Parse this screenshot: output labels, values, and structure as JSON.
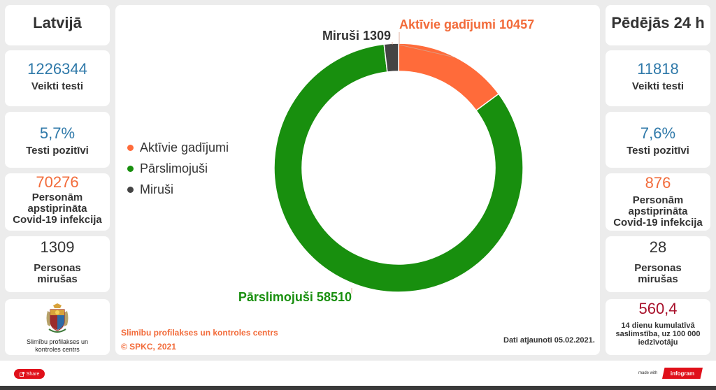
{
  "left": {
    "header": "Latvijā",
    "tests": {
      "value": "1226344",
      "label": "Veikti testi"
    },
    "positive": {
      "value": "5,7%",
      "label": "Testi pozitīvi"
    },
    "confirmed": {
      "value": "70276",
      "label_lines": [
        "Personām",
        "apstiprināta",
        "Covid-19 infekcija"
      ]
    },
    "deaths": {
      "value": "1309",
      "label_lines": [
        "Personas",
        "mirušas"
      ]
    },
    "logo_text_lines": [
      "Slimību profilakses un",
      "kontroles centrs"
    ]
  },
  "right": {
    "header": "Pēdējās 24 h",
    "tests": {
      "value": "11818",
      "label": "Veikti testi"
    },
    "positive": {
      "value": "7,6%",
      "label": "Testi pozitīvi"
    },
    "confirmed": {
      "value": "876",
      "label_lines": [
        "Personām",
        "apstiprināta",
        "Covid-19 infekcija"
      ]
    },
    "deaths": {
      "value": "28",
      "label_lines": [
        "Personas",
        "mirušas"
      ]
    },
    "incidence": {
      "value": "560,4",
      "label_lines": [
        "14 dienu kumulatīvā",
        "saslimstība, uz 100 000",
        "iedzīvotāju"
      ]
    }
  },
  "center": {
    "source": "Slimību profilakses un kontroles centrs",
    "copyright": "© SPKC, 2021",
    "updated": "Dati atjaunoti 05.02.2021."
  },
  "footer": {
    "share_label": "Share",
    "made_with": "made with",
    "brand": "infogram"
  },
  "colors": {
    "active": "#ff6b3a",
    "recovered": "#188f0e",
    "deaths": "#444444",
    "blue_text": "#2f79a9",
    "orange_text": "#f26b3a",
    "red_text": "#a8102a"
  },
  "chart_data": {
    "type": "pie",
    "donut": true,
    "legend_position": "left",
    "categories": [
      "Aktīvie gadījumi",
      "Pārslimojuši",
      "Miruši"
    ],
    "values": [
      10457,
      58510,
      1309
    ],
    "colors": [
      "#ff6b3a",
      "#188f0e",
      "#444444"
    ],
    "data_labels": [
      "Aktīvie gadījumi 10457",
      "Pārslimojuši 58510",
      "Miruši 1309"
    ]
  }
}
